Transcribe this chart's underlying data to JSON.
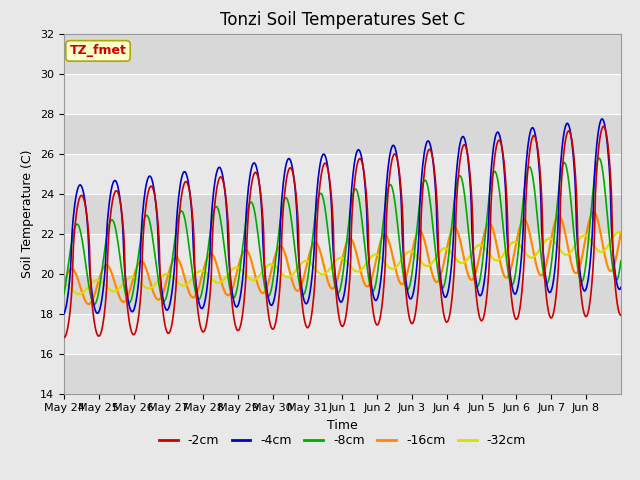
{
  "title": "Tonzi Soil Temperatures Set C",
  "xlabel": "Time",
  "ylabel": "Soil Temperature (C)",
  "ylim": [
    14,
    32
  ],
  "annotation_text": "TZ_fmet",
  "annotation_color": "#cc0000",
  "annotation_bg": "#ffffcc",
  "annotation_border": "#aaaa00",
  "series_colors": {
    "-2cm": "#cc0000",
    "-4cm": "#0000cc",
    "-8cm": "#00aa00",
    "-16cm": "#ff8800",
    "-32cm": "#dddd00"
  },
  "series_labels": [
    "-2cm",
    "-4cm",
    "-8cm",
    "-16cm",
    "-32cm"
  ],
  "x_tick_labels": [
    "May 24",
    "May 25",
    "May 26",
    "May 27",
    "May 28",
    "May 29",
    "May 30",
    "May 31",
    "Jun 1",
    "Jun 2",
    "Jun 3",
    "Jun 4",
    "Jun 5",
    "Jun 6",
    "Jun 7",
    "Jun 8"
  ],
  "background_plot": "#e8e8e8",
  "background_fig": "#e8e8e8",
  "grid_color": "#ffffff",
  "title_fontsize": 12,
  "label_fontsize": 9,
  "tick_fontsize": 8,
  "legend_fontsize": 9,
  "linewidth": 1.2
}
